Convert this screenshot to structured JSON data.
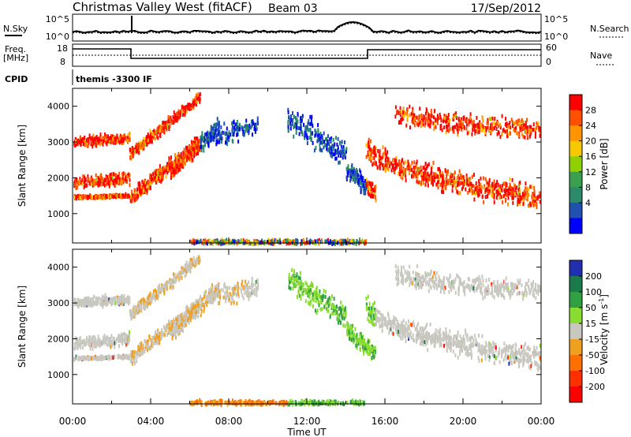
{
  "header": {
    "station": "Christmas Valley West (fitACF)",
    "beam": "Beam 03",
    "date": "17/Sep/2012"
  },
  "top_strip": {
    "nsky_label": "N.Sky",
    "nsearch_label": "N.Search",
    "nave_label": "Nave",
    "freq_label_1": "Freq.",
    "freq_label_2": "[MHz]",
    "cpid_label": "CPID",
    "cpid_value": "themis -3300 IF",
    "noise_ticks": [
      "10^5",
      "10^0"
    ],
    "freq_ticks": [
      "18",
      "8"
    ],
    "nave_ticks": [
      "60",
      "0"
    ]
  },
  "chart_data": [
    {
      "type": "heatmap",
      "name": "power",
      "xlabel": "",
      "ylabel": "Slant Range [km]",
      "xlim": [
        0,
        24
      ],
      "ylim": [
        180,
        4500
      ],
      "y_ticks": [
        1000,
        2000,
        3000,
        4000
      ],
      "colorbar": {
        "label": "Power [dB]",
        "ticks": [
          "28",
          "24",
          "20",
          "16",
          "12",
          "8",
          "4"
        ],
        "colors": [
          "#ff0000",
          "#ff5000",
          "#ff9400",
          "#f7c800",
          "#8fd000",
          "#3aa050",
          "#2a8a6a",
          "#2050b0",
          "#0000ff"
        ]
      }
    },
    {
      "type": "heatmap",
      "name": "velocity",
      "xlabel": "Time UT",
      "ylabel": "Slant Range [km]",
      "xlim": [
        0,
        24
      ],
      "ylim": [
        180,
        4500
      ],
      "x_ticks": [
        "00:00",
        "04:00",
        "08:00",
        "12:00",
        "16:00",
        "20:00",
        "00:00"
      ],
      "y_ticks": [
        1000,
        2000,
        3000,
        4000
      ],
      "colorbar": {
        "label": "Velocity [m s",
        "label_sup": "-1",
        "label_end": "]",
        "ticks": [
          "200",
          "100",
          "50",
          "15",
          "-15",
          "-50",
          "-100",
          "-200"
        ],
        "colors": [
          "#2030b0",
          "#1a7a4a",
          "#30a040",
          "#88dd30",
          "#c8c8c0",
          "#f0a020",
          "#ff7000",
          "#ff3000",
          "#ff0000"
        ]
      }
    }
  ]
}
